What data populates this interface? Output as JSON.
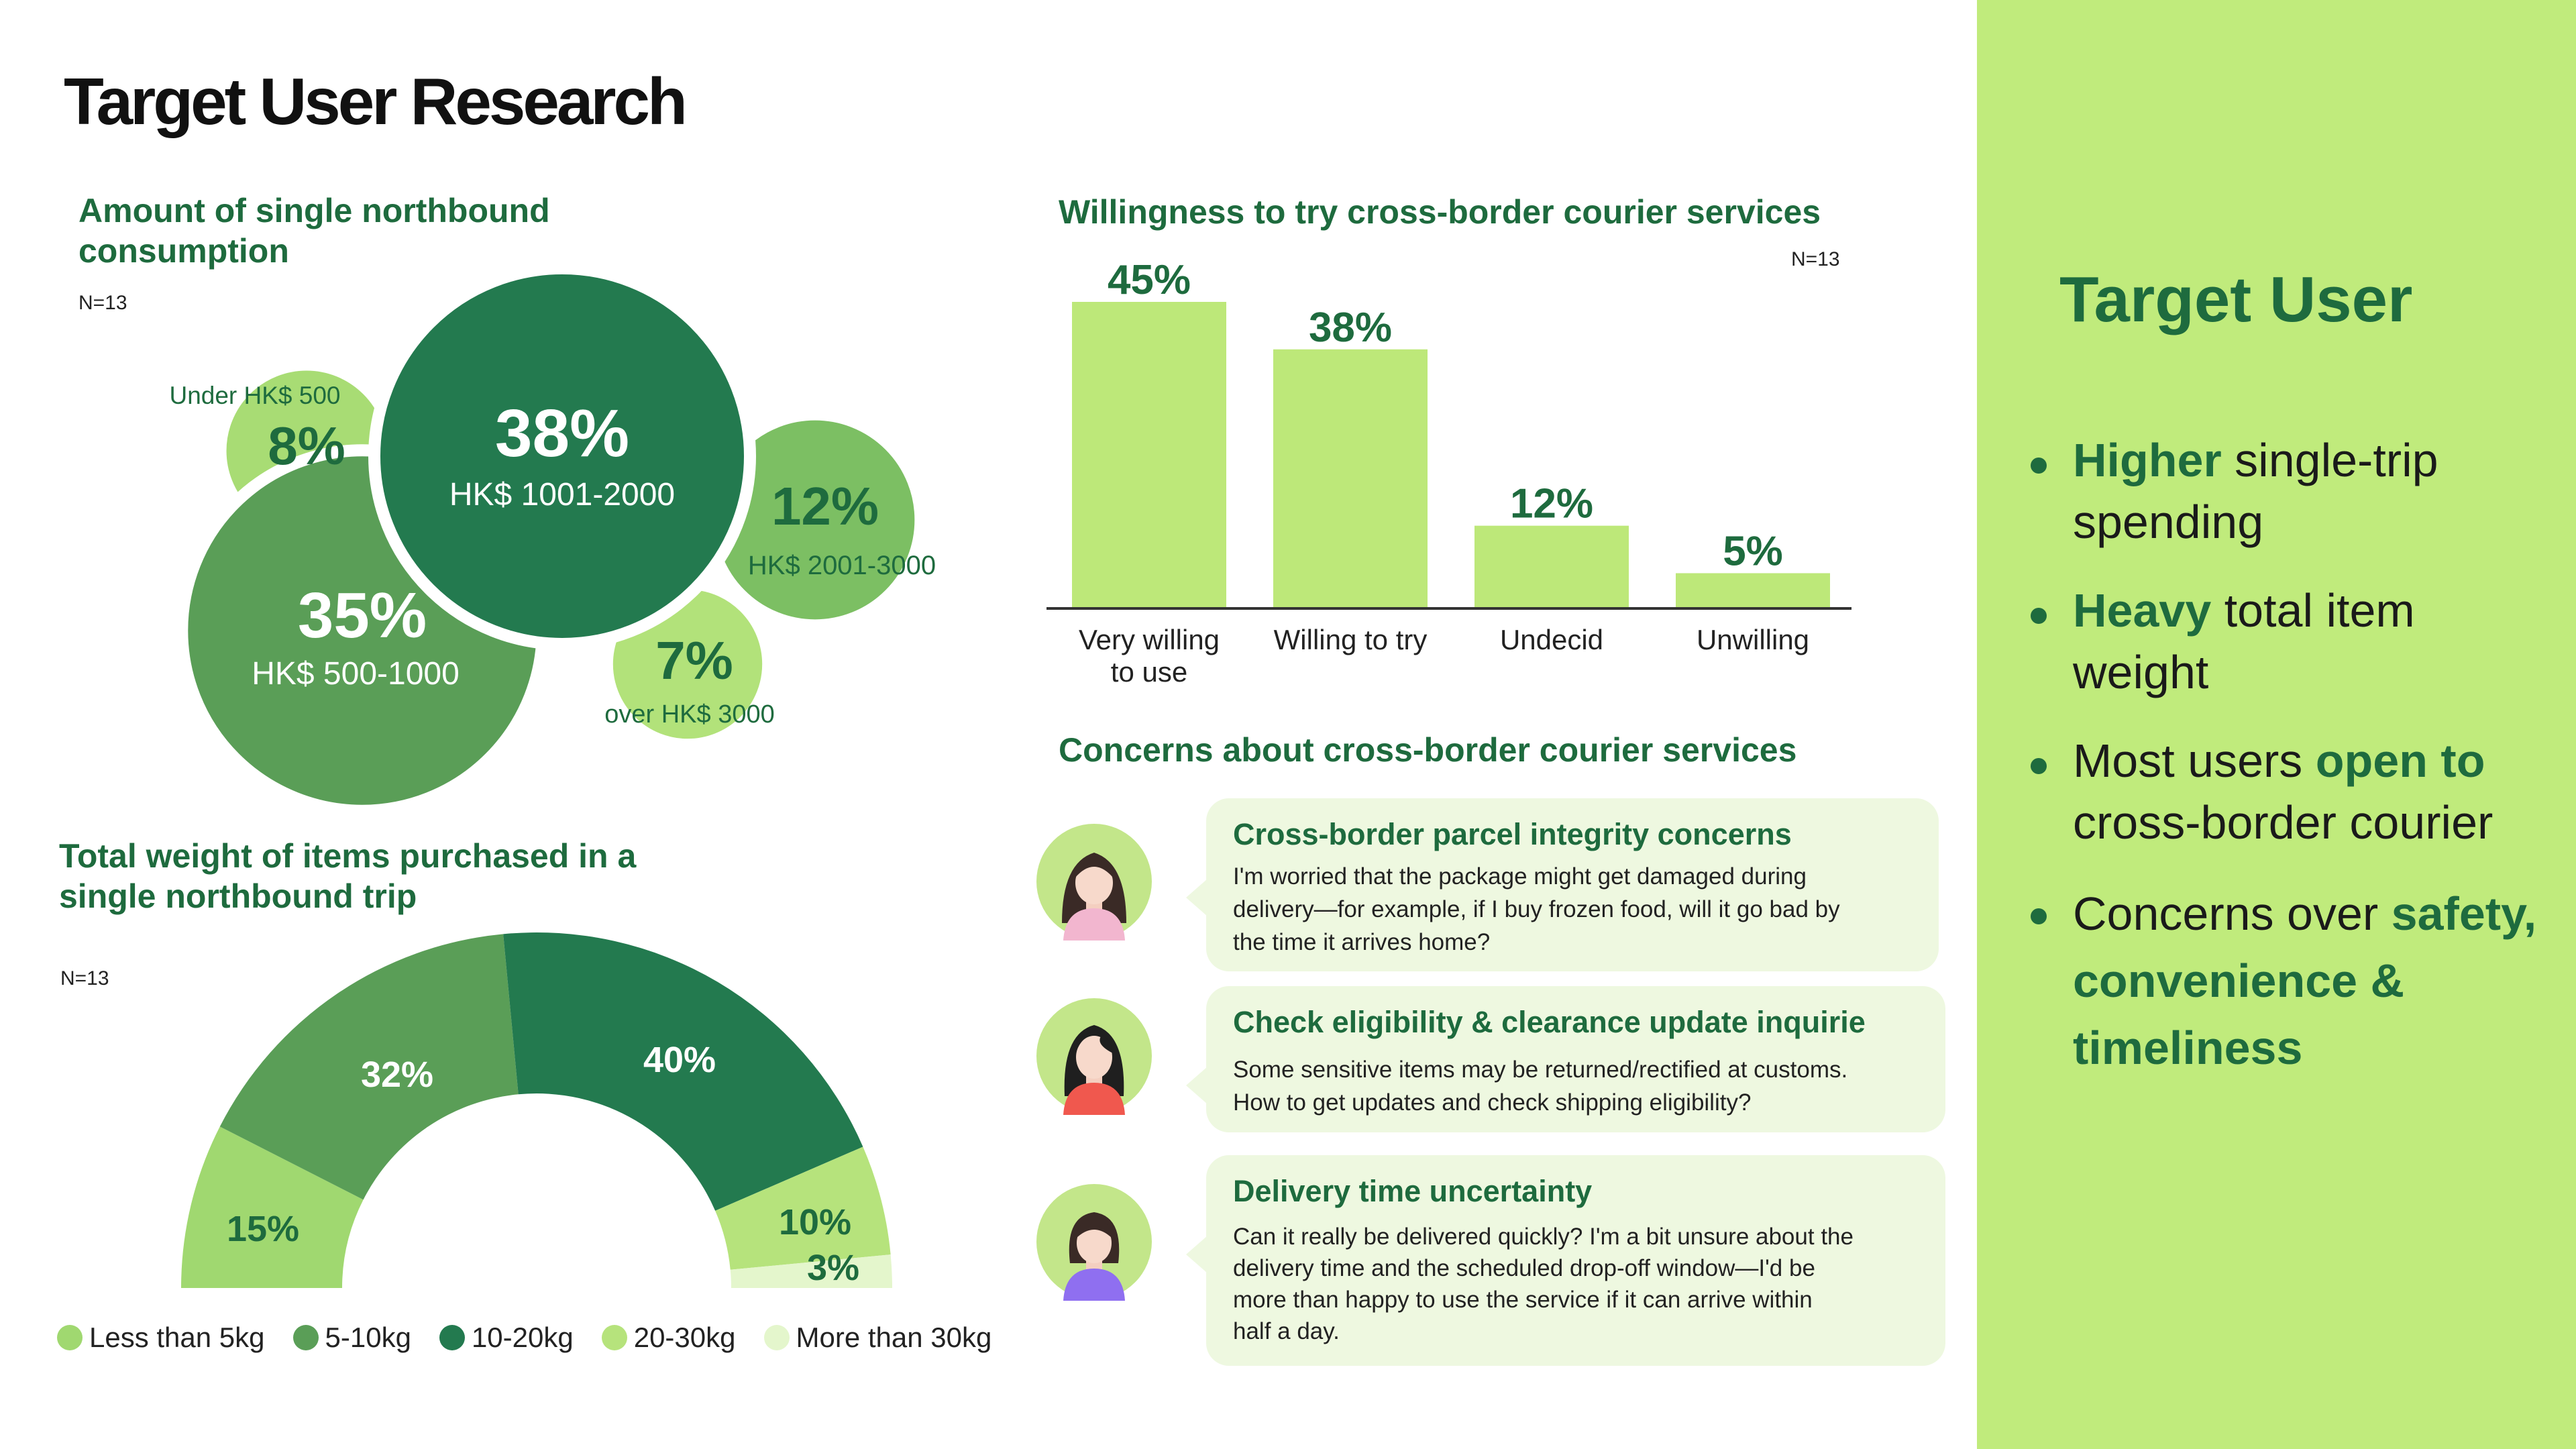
{
  "page_title": "Target User Research",
  "chart_data": [
    {
      "type": "bubble",
      "title": "Amount of single northbound consumption",
      "note": "N=13",
      "categories": [
        "Under HK$ 500",
        "HK$ 500-1000",
        "HK$ 1001-2000",
        "HK$ 2001-3000",
        "over HK$ 3000"
      ],
      "values": [
        8,
        35,
        38,
        12,
        7
      ],
      "labels": [
        "8%",
        "35%",
        "38%",
        "12%",
        "7%"
      ],
      "colors": [
        "#a8dc74",
        "#5a9e57",
        "#237a4f",
        "#7cbf63",
        "#b2e27a"
      ]
    },
    {
      "type": "bar",
      "title": "Willingness to try cross-border courier services",
      "note": "N=13",
      "categories": [
        "Very willing to use",
        "Willing to try",
        "Undecid",
        "Unwilling"
      ],
      "values": [
        45,
        38,
        12,
        5
      ],
      "labels": [
        "45%",
        "38%",
        "12%",
        "5%"
      ],
      "ylim": [
        0,
        45
      ],
      "color": "#bde879"
    },
    {
      "type": "pie",
      "subtype": "half-donut",
      "title": "Total weight of items purchased in a single northbound trip",
      "note": "N=13",
      "categories": [
        "Less than 5kg",
        "5-10kg",
        "10-20kg",
        "20-30kg",
        "More than 30kg"
      ],
      "values": [
        15,
        32,
        40,
        10,
        3
      ],
      "labels": [
        "15%",
        "32%",
        "40%",
        "10%",
        "3%"
      ],
      "colors": [
        "#a0d870",
        "#5a9e57",
        "#237a4f",
        "#b6e37c",
        "#e4f6cc"
      ],
      "legend": "bottom"
    }
  ],
  "concerns": {
    "title": "Concerns about cross-border courier services",
    "items": [
      {
        "title": "Cross-border parcel integrity concerns",
        "lines": [
          "I'm worried that the package might get damaged during",
          "delivery—for example, if I buy frozen food, will it go bad by",
          "the time it arrives home?"
        ],
        "avatar": "woman-long-hair-pink-avatar"
      },
      {
        "title": "Check eligibility & clearance update inquirie",
        "lines": [
          "Some sensitive items may be returned/rectified at customs.",
          "How to get updates and check shipping eligibility?"
        ],
        "avatar": "woman-black-hair-red-avatar"
      },
      {
        "title": "Delivery time uncertainty",
        "lines": [
          "Can it really be delivered quickly? I'm a bit unsure about the",
          "delivery time and the scheduled drop-off window—I'd be",
          "more than happy to use the service if it can arrive within",
          "half a day."
        ],
        "avatar": "woman-bob-hair-purple-avatar"
      }
    ]
  },
  "summary": {
    "title": "Target User",
    "items": [
      {
        "pre": "",
        "bold": "Higher",
        "post": " single-trip spending"
      },
      {
        "pre": "",
        "bold": "Heavy",
        "post": " total item weight"
      },
      {
        "pre": "Most users ",
        "bold": "open to",
        "post": " cross-border courier"
      },
      {
        "pre": "Concerns over ",
        "bold": "safety, convenience & timeliness",
        "post": ""
      }
    ]
  },
  "colors": {
    "accent": "#1e6b3e",
    "panel": "#c0eb7c",
    "bubble_bg": "#eef8e0"
  }
}
